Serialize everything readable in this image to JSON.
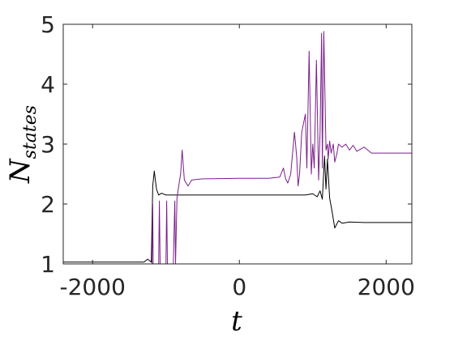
{
  "chart_data": {
    "type": "line",
    "xlabel": "t",
    "ylabel_main": "N",
    "ylabel_sub": "states",
    "xlim": [
      -2400,
      2350
    ],
    "ylim": [
      1,
      5
    ],
    "xticks": [
      "-2000",
      "0",
      "2000"
    ],
    "xtick_values": [
      -2000,
      0,
      2000
    ],
    "yticks": [
      "1",
      "2",
      "3",
      "4",
      "5"
    ],
    "ytick_values": [
      1,
      2,
      3,
      4,
      5
    ],
    "grid": false,
    "colors": {
      "black": "#000000",
      "purple": "#7b1e8c",
      "frame": "#262626"
    },
    "series": [
      {
        "color": "black",
        "x": [
          -2400,
          -1300,
          -1250,
          -1200,
          -1180,
          -1160,
          -1130,
          -1100,
          -1060,
          -1000,
          -900,
          -700,
          0,
          500,
          900,
          1000,
          1060,
          1100,
          1130,
          1160,
          1180,
          1200,
          1230,
          1260,
          1300,
          1350,
          1400,
          1500,
          1700,
          2350
        ],
        "y": [
          1.03,
          1.03,
          1.08,
          1.03,
          2.3,
          2.55,
          2.25,
          2.15,
          2.18,
          2.15,
          2.15,
          2.15,
          2.15,
          2.15,
          2.15,
          2.17,
          2.12,
          2.22,
          2.08,
          2.8,
          2.25,
          2.75,
          2.1,
          1.9,
          1.6,
          1.72,
          1.68,
          1.7,
          1.69,
          1.69
        ]
      },
      {
        "color": "purple",
        "x": [
          -2400,
          -1190,
          -1180,
          -1175,
          -1160,
          -1100,
          -1090,
          -1080,
          -1050,
          -1000,
          -990,
          -980,
          -950,
          -900,
          -880,
          -870,
          -850,
          -820,
          -800,
          -780,
          -750,
          -700,
          -650,
          -500,
          0,
          400,
          550,
          600,
          630,
          660,
          700,
          750,
          780,
          800,
          820,
          850,
          900,
          920,
          950,
          980,
          1000,
          1020,
          1050,
          1080,
          1100,
          1120,
          1130,
          1150,
          1180,
          1200,
          1210,
          1230,
          1250,
          1280,
          1300,
          1330,
          1350,
          1400,
          1450,
          1500,
          1550,
          1600,
          1700,
          1800,
          1900,
          2000,
          2350
        ],
        "y": [
          1.0,
          1.0,
          2.0,
          1.0,
          1.0,
          1.0,
          2.05,
          1.0,
          1.0,
          1.0,
          2.05,
          1.0,
          1.0,
          1.0,
          2.05,
          1.0,
          2.1,
          2.35,
          2.5,
          2.9,
          2.4,
          2.3,
          2.4,
          2.42,
          2.43,
          2.43,
          2.45,
          2.6,
          2.42,
          2.35,
          2.5,
          3.2,
          2.8,
          2.3,
          2.5,
          3.2,
          3.5,
          2.6,
          4.55,
          2.5,
          3.0,
          2.6,
          4.4,
          2.4,
          3.2,
          4.85,
          2.6,
          4.88,
          2.9,
          3.0,
          2.75,
          3.05,
          2.85,
          3.0,
          2.7,
          2.85,
          3.0,
          2.95,
          3.0,
          2.9,
          2.98,
          2.88,
          2.95,
          2.85,
          2.85,
          2.85,
          2.85
        ]
      }
    ]
  }
}
